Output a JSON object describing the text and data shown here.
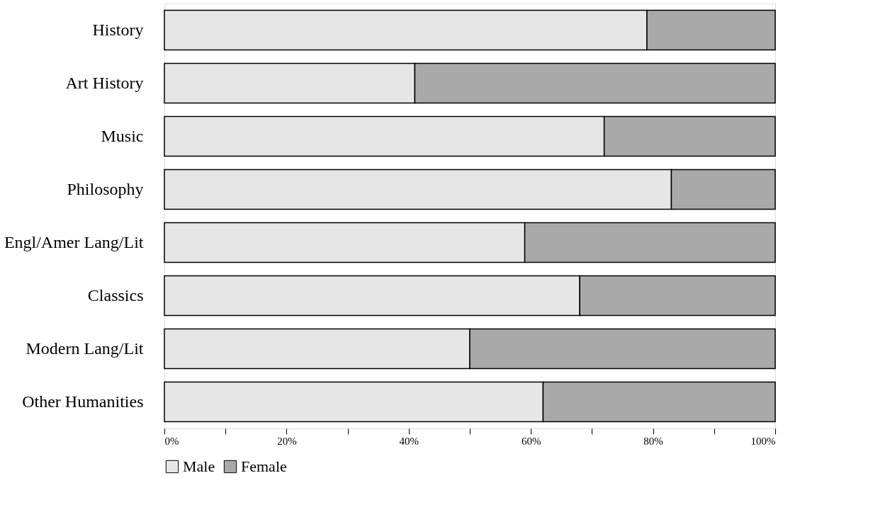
{
  "chart_data": {
    "type": "bar",
    "orientation": "horizontal",
    "stacked": true,
    "categories": [
      "History",
      "Art History",
      "Music",
      "Philosophy",
      "Engl/Amer Lang/Lit",
      "Classics",
      "Modern Lang/Lit",
      "Other Humanities"
    ],
    "series": [
      {
        "name": "Male",
        "color": "#e6e6e6",
        "values": [
          79,
          41,
          72,
          83,
          59,
          68,
          50,
          62
        ]
      },
      {
        "name": "Female",
        "color": "#a9a9a9",
        "values": [
          21,
          59,
          28,
          17,
          41,
          32,
          50,
          38
        ]
      }
    ],
    "xlim": [
      0,
      100
    ],
    "xticks": [
      {
        "value": 0,
        "label": "0%"
      },
      {
        "value": 10,
        "label": null
      },
      {
        "value": 20,
        "label": "20%"
      },
      {
        "value": 30,
        "label": null
      },
      {
        "value": 40,
        "label": "40%"
      },
      {
        "value": 50,
        "label": null
      },
      {
        "value": 60,
        "label": "60%"
      },
      {
        "value": 70,
        "label": null
      },
      {
        "value": 80,
        "label": "80%"
      },
      {
        "value": 90,
        "label": null
      },
      {
        "value": 100,
        "label": "100%"
      }
    ],
    "grid": false,
    "legend": "bottom"
  }
}
